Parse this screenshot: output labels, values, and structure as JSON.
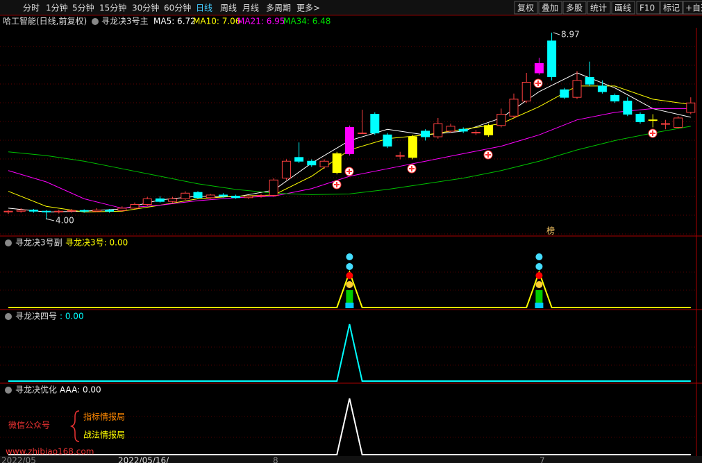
{
  "toolbar": {
    "left": [
      "分时",
      "1分钟",
      "5分钟",
      "15分钟",
      "30分钟",
      "60分钟",
      "日线",
      "周线",
      "月线",
      "多周期",
      "更多>"
    ],
    "active": "日线",
    "right": [
      "复权",
      "叠加",
      "多股",
      "统计",
      "画线",
      "F10",
      "标记",
      "+自选"
    ]
  },
  "info": {
    "stock": "哈工智能(日线,前复权)",
    "indicator": "寻龙决3号主",
    "ma": [
      {
        "text": "MA5: 6.72",
        "color": "#ffffff"
      },
      {
        "text": "MA10: 7.06",
        "color": "#ffff00"
      },
      {
        "text": "MA21: 6.95",
        "color": "#ff00ff"
      },
      {
        "text": "MA34: 6.48",
        "color": "#00e000"
      }
    ]
  },
  "main": {
    "ylim": [
      3.56,
      9.1
    ],
    "up_color": "#ff4040",
    "down_color": "#00ffff",
    "candles": [
      [
        4.2,
        4.22,
        4.25,
        4.15
      ],
      [
        4.22,
        4.25,
        4.3,
        4.18
      ],
      [
        4.25,
        4.22,
        4.28,
        4.18
      ],
      [
        4.22,
        4.2,
        4.25,
        4.0
      ],
      [
        4.2,
        4.22,
        4.26,
        4.16
      ],
      [
        4.22,
        4.24,
        4.28,
        4.18
      ],
      [
        4.24,
        4.22,
        4.27,
        4.18
      ],
      [
        4.22,
        4.25,
        4.3,
        4.2
      ],
      [
        4.25,
        4.22,
        4.28,
        4.18
      ],
      [
        4.24,
        4.3,
        4.35,
        4.2
      ],
      [
        4.3,
        4.4,
        4.45,
        4.28
      ],
      [
        4.4,
        4.55,
        4.6,
        4.36
      ],
      [
        4.55,
        4.48,
        4.62,
        4.45
      ],
      [
        4.48,
        4.55,
        4.6,
        4.45
      ],
      [
        4.55,
        4.7,
        4.75,
        4.52
      ],
      [
        4.72,
        4.58,
        4.75,
        4.55
      ],
      [
        4.58,
        4.65,
        4.68,
        4.55
      ],
      [
        4.65,
        4.62,
        4.7,
        4.58
      ],
      [
        4.62,
        4.58,
        4.66,
        4.55
      ],
      [
        4.58,
        4.62,
        4.65,
        4.55
      ],
      [
        4.62,
        4.64,
        4.68,
        4.58
      ],
      [
        4.64,
        5.05,
        5.1,
        4.6
      ],
      [
        5.1,
        5.55,
        5.6,
        5.05
      ],
      [
        5.65,
        5.55,
        6.05,
        5.5
      ],
      [
        5.55,
        5.45,
        5.6,
        5.4
      ],
      [
        5.4,
        5.55,
        5.6,
        5.35
      ],
      [
        5.25,
        5.75,
        5.8,
        5.2
      ],
      [
        5.75,
        6.45,
        6.5,
        5.7
      ],
      [
        6.3,
        6.3,
        6.92,
        6.3
      ],
      [
        6.8,
        6.3,
        6.85,
        6.25
      ],
      [
        6.25,
        5.95,
        6.3,
        5.9
      ],
      [
        5.7,
        5.7,
        5.8,
        5.6
      ],
      [
        5.65,
        6.2,
        6.25,
        5.6
      ],
      [
        6.35,
        6.2,
        6.4,
        6.1
      ],
      [
        6.2,
        6.55,
        6.7,
        6.15
      ],
      [
        6.35,
        6.48,
        6.55,
        6.3
      ],
      [
        6.4,
        6.35,
        6.45,
        6.3
      ],
      [
        6.3,
        6.32,
        6.38,
        6.25
      ],
      [
        6.25,
        6.5,
        6.55,
        6.2
      ],
      [
        6.5,
        6.8,
        6.95,
        6.45
      ],
      [
        6.75,
        7.2,
        7.35,
        6.7
      ],
      [
        7.15,
        7.65,
        7.9,
        7.1
      ],
      [
        7.9,
        8.15,
        8.3,
        7.85
      ],
      [
        8.75,
        7.8,
        8.97,
        7.7
      ],
      [
        7.45,
        7.25,
        7.5,
        7.2
      ],
      [
        7.25,
        7.7,
        7.95,
        7.2
      ],
      [
        7.78,
        7.6,
        8.2,
        7.55
      ],
      [
        7.55,
        7.4,
        7.7,
        7.35
      ],
      [
        7.3,
        7.15,
        7.35,
        7.1
      ],
      [
        7.15,
        6.8,
        7.25,
        6.75
      ],
      [
        6.8,
        6.6,
        6.85,
        6.55
      ],
      [
        6.65,
        6.65,
        6.8,
        6.45
      ],
      [
        6.55,
        6.55,
        6.65,
        6.4
      ],
      [
        6.45,
        6.7,
        6.75,
        6.42
      ],
      [
        6.85,
        7.1,
        7.25,
        6.8
      ]
    ],
    "highlights": [
      {
        "index": 26,
        "color": "#ffff00"
      },
      {
        "index": 27,
        "color": "#ff00ff"
      },
      {
        "index": 32,
        "color": "#ffff00"
      },
      {
        "index": 38,
        "color": "#ffff00"
      },
      {
        "index": 42,
        "color": "#ff00ff"
      },
      {
        "index": 51,
        "color": "#ffff00"
      }
    ],
    "ma_x": [
      0,
      3,
      6,
      9,
      12,
      15,
      18,
      21,
      24,
      27,
      30,
      33,
      36,
      39,
      42,
      45,
      48,
      51,
      54
    ],
    "ma": [
      {
        "color": "#ffffff",
        "values": [
          4.3,
          4.2,
          4.22,
          4.28,
          4.52,
          4.62,
          4.6,
          4.78,
          5.5,
          6.1,
          6.4,
          6.25,
          6.35,
          6.7,
          7.4,
          7.9,
          7.5,
          6.95,
          6.72
        ]
      },
      {
        "color": "#ffff00",
        "values": [
          4.75,
          4.35,
          4.2,
          4.22,
          4.38,
          4.55,
          4.62,
          4.65,
          5.15,
          5.85,
          6.15,
          6.25,
          6.4,
          6.55,
          7.0,
          7.55,
          7.55,
          7.2,
          7.06
        ]
      },
      {
        "color": "#ff00ff",
        "values": [
          5.3,
          5.0,
          4.55,
          4.3,
          4.38,
          4.5,
          4.58,
          4.62,
          4.82,
          5.15,
          5.35,
          5.55,
          5.75,
          5.95,
          6.25,
          6.65,
          6.85,
          6.95,
          6.95
        ]
      },
      {
        "color": "#00c000",
        "values": [
          5.8,
          5.7,
          5.55,
          5.35,
          5.15,
          4.95,
          4.8,
          4.7,
          4.66,
          4.68,
          4.8,
          4.95,
          5.1,
          5.3,
          5.55,
          5.85,
          6.1,
          6.3,
          6.48
        ]
      }
    ],
    "high_label": "8.97",
    "low_label": "4.00",
    "badge": "榜"
  },
  "panels": [
    {
      "title": "寻龙决3号副",
      "value_text": "寻龙决3号: 0.00",
      "color": "#ffff00",
      "ylim": [
        0,
        1
      ],
      "values": [
        0,
        0,
        0,
        0,
        0,
        0,
        0,
        0,
        0,
        0,
        0,
        0,
        0,
        0,
        0,
        0,
        0,
        0,
        0,
        0,
        0,
        0,
        0,
        0,
        0,
        0,
        0,
        1,
        0,
        0,
        0,
        0,
        0,
        0,
        0,
        0,
        0,
        0,
        0,
        0,
        0,
        0,
        1,
        0,
        0,
        0,
        0,
        0,
        0,
        0,
        0,
        0,
        0,
        0,
        0
      ]
    },
    {
      "title": "寻龙决四号",
      "value_text": ": 0.00",
      "color": "#00ffff",
      "ylim": [
        0,
        1
      ],
      "values": [
        0,
        0,
        0,
        0,
        0,
        0,
        0,
        0,
        0,
        0,
        0,
        0,
        0,
        0,
        0,
        0,
        0,
        0,
        0,
        0,
        0,
        0,
        0,
        0,
        0,
        0,
        0,
        1,
        0,
        0,
        0,
        0,
        0,
        0,
        0,
        0,
        0,
        0,
        0,
        0,
        0,
        0,
        0,
        0,
        0,
        0,
        0,
        0,
        0,
        0,
        0,
        0,
        0,
        0,
        0
      ]
    },
    {
      "title": "寻龙决优化",
      "value_text": "AAA: 0.00",
      "color": "#ffffff",
      "ylim": [
        0,
        1
      ],
      "values": [
        0,
        0,
        0,
        0,
        0,
        0,
        0,
        0,
        0,
        0,
        0,
        0,
        0,
        0,
        0,
        0,
        0,
        0,
        0,
        0,
        0,
        0,
        0,
        0,
        0,
        0,
        0,
        1,
        0,
        0,
        0,
        0,
        0,
        0,
        0,
        0,
        0,
        0,
        0,
        0,
        0,
        0,
        0,
        0,
        0,
        0,
        0,
        0,
        0,
        0,
        0,
        0,
        0,
        0,
        0
      ]
    }
  ],
  "timeline": [
    "2022/05",
    "2022/05/16/",
    "8",
    "7"
  ],
  "watermark": {
    "label": "微信公众号",
    "lines": [
      "指标情报局",
      "战法情报局"
    ],
    "url": "www.zhibiao168.com"
  }
}
